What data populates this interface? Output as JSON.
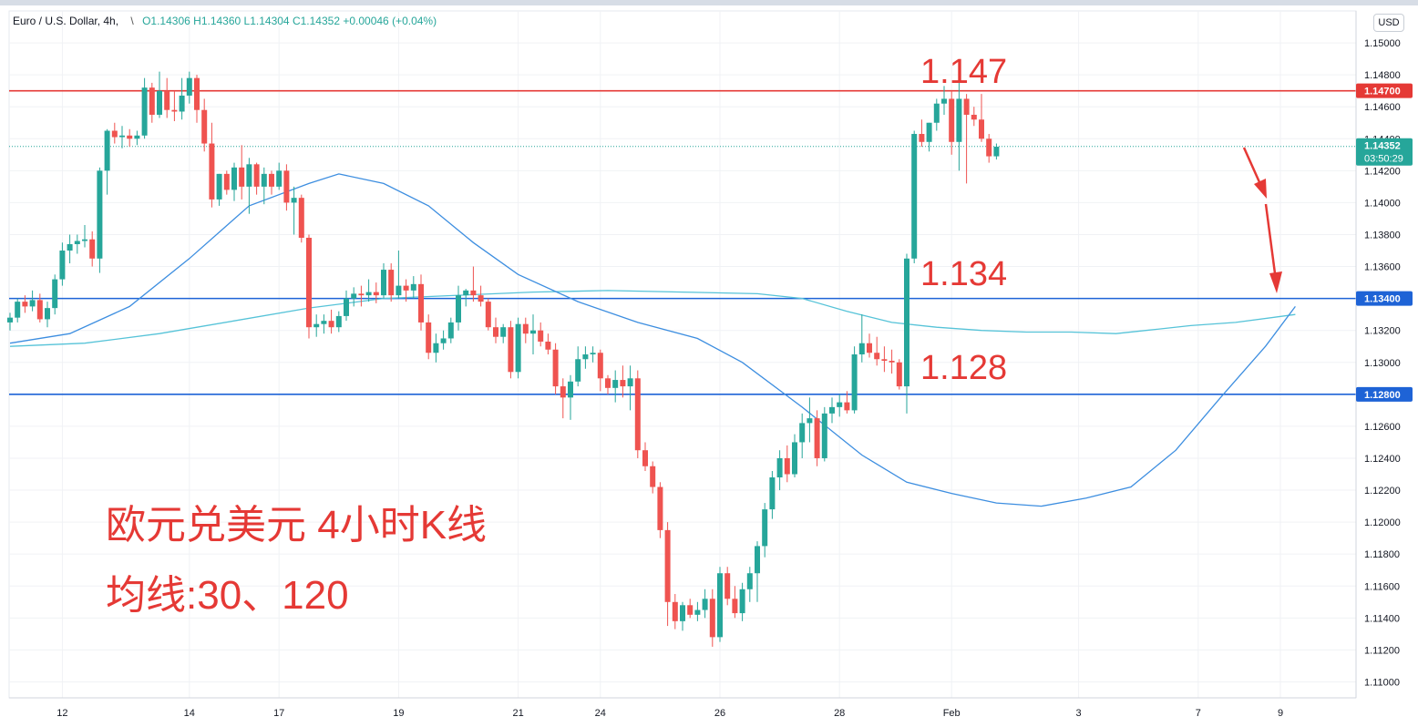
{
  "legend": {
    "symbol": "Euro / U.S. Dollar",
    "interval": "4h,",
    "open": "O1.14306",
    "high": "H1.14360",
    "low": "L1.14304",
    "close": "C1.14352",
    "change": "+0.00046 (+0.04%)"
  },
  "currency_button": "USD",
  "annotations": {
    "level_high": "1.147",
    "level_mid": "1.134",
    "level_low": "1.128",
    "title_cn": "欧元兑美元 4小时K线",
    "ma_note": "均线:30、120"
  },
  "price_badges": {
    "current_price": "1.14352",
    "countdown": "03:50:29",
    "level_1": "1.14700",
    "level_2": "1.13400",
    "level_3": "1.12800"
  },
  "colors": {
    "up": "#26a69a",
    "down": "#ef5350",
    "resistance": "#e53935",
    "support": "#1e63d6",
    "ma30": "#3d8ee0",
    "ma120": "#56c3d8"
  },
  "chart_data": {
    "type": "candlestick",
    "y_axis": {
      "min": 1.109,
      "max": 1.152,
      "ticks": [
        "1.15000",
        "1.14800",
        "1.14600",
        "1.14400",
        "1.14200",
        "1.14000",
        "1.13800",
        "1.13600",
        "1.13400",
        "1.13200",
        "1.13000",
        "1.12800",
        "1.12600",
        "1.12400",
        "1.12200",
        "1.12000",
        "1.11800",
        "1.11600",
        "1.11400",
        "1.11200",
        "1.11000"
      ],
      "tick_values": [
        1.15,
        1.148,
        1.146,
        1.144,
        1.142,
        1.14,
        1.138,
        1.136,
        1.134,
        1.132,
        1.13,
        1.128,
        1.126,
        1.124,
        1.122,
        1.12,
        1.118,
        1.116,
        1.114,
        1.112,
        1.11
      ]
    },
    "x_axis": {
      "labels": [
        "12",
        "14",
        "17",
        "19",
        "21",
        "24",
        "26",
        "28",
        "Feb",
        "3",
        "7",
        "9"
      ],
      "bar_index": [
        7,
        24,
        36,
        52,
        68,
        79,
        95,
        111,
        126,
        143,
        159,
        170
      ]
    },
    "horizontal_levels": [
      {
        "price": 1.147,
        "color": "#e53935"
      },
      {
        "price": 1.134,
        "color": "#1e63d6"
      },
      {
        "price": 1.128,
        "color": "#1e63d6"
      }
    ],
    "current_price": 1.14352,
    "candles": [
      [
        1.1325,
        1.1331,
        1.132,
        1.1328
      ],
      [
        1.1328,
        1.134,
        1.1325,
        1.1338
      ],
      [
        1.1338,
        1.1342,
        1.1331,
        1.1335
      ],
      [
        1.1335,
        1.1345,
        1.1332,
        1.1339
      ],
      [
        1.1339,
        1.1343,
        1.1325,
        1.1327
      ],
      [
        1.1327,
        1.1338,
        1.1322,
        1.1334
      ],
      [
        1.1334,
        1.1355,
        1.133,
        1.1352
      ],
      [
        1.1352,
        1.1375,
        1.1348,
        1.137
      ],
      [
        1.137,
        1.138,
        1.1362,
        1.1374
      ],
      [
        1.1374,
        1.138,
        1.1368,
        1.1376
      ],
      [
        1.1376,
        1.1386,
        1.1372,
        1.1377
      ],
      [
        1.1377,
        1.1382,
        1.136,
        1.1365
      ],
      [
        1.1365,
        1.1422,
        1.1356,
        1.142
      ],
      [
        1.142,
        1.1446,
        1.1405,
        1.1445
      ],
      [
        1.1445,
        1.145,
        1.1437,
        1.1441
      ],
      [
        1.1441,
        1.1448,
        1.1434,
        1.1442
      ],
      [
        1.1442,
        1.1446,
        1.1435,
        1.144
      ],
      [
        1.144,
        1.1445,
        1.1436,
        1.1442
      ],
      [
        1.1442,
        1.1478,
        1.144,
        1.1472
      ],
      [
        1.1472,
        1.1475,
        1.145,
        1.1455
      ],
      [
        1.1455,
        1.1482,
        1.1453,
        1.147
      ],
      [
        1.147,
        1.1478,
        1.1453,
        1.1458
      ],
      [
        1.1458,
        1.147,
        1.1451,
        1.1457
      ],
      [
        1.1457,
        1.1478,
        1.1452,
        1.1467
      ],
      [
        1.1467,
        1.1482,
        1.1462,
        1.1478
      ],
      [
        1.1478,
        1.148,
        1.145,
        1.1458
      ],
      [
        1.1458,
        1.1465,
        1.1432,
        1.1437
      ],
      [
        1.1437,
        1.145,
        1.1397,
        1.1402
      ],
      [
        1.1402,
        1.1418,
        1.1398,
        1.1418
      ],
      [
        1.1418,
        1.142,
        1.1405,
        1.1408
      ],
      [
        1.1408,
        1.1425,
        1.1401,
        1.1422
      ],
      [
        1.1422,
        1.1436,
        1.1402,
        1.141
      ],
      [
        1.141,
        1.1428,
        1.1393,
        1.1424
      ],
      [
        1.1424,
        1.1425,
        1.1405,
        1.141
      ],
      [
        1.141,
        1.1422,
        1.1399,
        1.1418
      ],
      [
        1.1418,
        1.142,
        1.1405,
        1.141
      ],
      [
        1.141,
        1.1425,
        1.1408,
        1.142
      ],
      [
        1.142,
        1.1424,
        1.1395,
        1.14
      ],
      [
        1.14,
        1.141,
        1.138,
        1.1403
      ],
      [
        1.1403,
        1.1405,
        1.1375,
        1.1378
      ],
      [
        1.1378,
        1.138,
        1.1315,
        1.1322
      ],
      [
        1.1322,
        1.133,
        1.1316,
        1.1324
      ],
      [
        1.1324,
        1.133,
        1.1318,
        1.1326
      ],
      [
        1.1326,
        1.1333,
        1.1318,
        1.1322
      ],
      [
        1.1322,
        1.1332,
        1.1319,
        1.1329
      ],
      [
        1.1329,
        1.1345,
        1.1326,
        1.134
      ],
      [
        1.134,
        1.1347,
        1.1335,
        1.1343
      ],
      [
        1.1343,
        1.1348,
        1.1335,
        1.1342
      ],
      [
        1.1342,
        1.1352,
        1.1338,
        1.1344
      ],
      [
        1.1344,
        1.135,
        1.1337,
        1.1342
      ],
      [
        1.1342,
        1.1362,
        1.134,
        1.1358
      ],
      [
        1.1358,
        1.1362,
        1.1338,
        1.1342
      ],
      [
        1.1342,
        1.137,
        1.134,
        1.1348
      ],
      [
        1.1348,
        1.1352,
        1.1338,
        1.1345
      ],
      [
        1.1345,
        1.1354,
        1.134,
        1.1349
      ],
      [
        1.1349,
        1.1355,
        1.132,
        1.1325
      ],
      [
        1.1325,
        1.133,
        1.1302,
        1.1306
      ],
      [
        1.1306,
        1.1318,
        1.13,
        1.1312
      ],
      [
        1.1312,
        1.132,
        1.1308,
        1.1315
      ],
      [
        1.1315,
        1.1328,
        1.1312,
        1.1325
      ],
      [
        1.1325,
        1.1348,
        1.132,
        1.1342
      ],
      [
        1.1342,
        1.1346,
        1.1335,
        1.1345
      ],
      [
        1.1345,
        1.136,
        1.1338,
        1.1342
      ],
      [
        1.1342,
        1.1348,
        1.1335,
        1.1338
      ],
      [
        1.1338,
        1.134,
        1.132,
        1.1322
      ],
      [
        1.1322,
        1.1328,
        1.1312,
        1.1316
      ],
      [
        1.1316,
        1.1324,
        1.1312,
        1.1322
      ],
      [
        1.1322,
        1.1326,
        1.129,
        1.1294
      ],
      [
        1.1294,
        1.1328,
        1.129,
        1.1324
      ],
      [
        1.1324,
        1.1328,
        1.1312,
        1.1318
      ],
      [
        1.1318,
        1.133,
        1.1305,
        1.132
      ],
      [
        1.132,
        1.1325,
        1.131,
        1.1313
      ],
      [
        1.1313,
        1.1318,
        1.1305,
        1.1308
      ],
      [
        1.1308,
        1.1312,
        1.128,
        1.1285
      ],
      [
        1.1285,
        1.129,
        1.1265,
        1.1278
      ],
      [
        1.1278,
        1.1292,
        1.1264,
        1.1288
      ],
      [
        1.1288,
        1.131,
        1.1285,
        1.1302
      ],
      [
        1.1302,
        1.131,
        1.1296,
        1.1305
      ],
      [
        1.1305,
        1.131,
        1.13,
        1.1306
      ],
      [
        1.1306,
        1.1308,
        1.1282,
        1.129
      ],
      [
        1.129,
        1.1292,
        1.128,
        1.1284
      ],
      [
        1.1284,
        1.1295,
        1.1275,
        1.1289
      ],
      [
        1.1289,
        1.1298,
        1.1278,
        1.1285
      ],
      [
        1.1285,
        1.1298,
        1.127,
        1.129
      ],
      [
        1.129,
        1.1295,
        1.124,
        1.1245
      ],
      [
        1.1245,
        1.125,
        1.1232,
        1.1235
      ],
      [
        1.1235,
        1.1238,
        1.1218,
        1.1222
      ],
      [
        1.1222,
        1.1225,
        1.119,
        1.1195
      ],
      [
        1.1195,
        1.12,
        1.1135,
        1.115
      ],
      [
        1.115,
        1.1155,
        1.1133,
        1.1138
      ],
      [
        1.1138,
        1.115,
        1.1132,
        1.1148
      ],
      [
        1.1148,
        1.1152,
        1.114,
        1.1142
      ],
      [
        1.1142,
        1.115,
        1.1138,
        1.1145
      ],
      [
        1.1145,
        1.1158,
        1.114,
        1.1152
      ],
      [
        1.1152,
        1.1158,
        1.1122,
        1.1128
      ],
      [
        1.1128,
        1.1172,
        1.1125,
        1.1168
      ],
      [
        1.1168,
        1.1172,
        1.1148,
        1.1152
      ],
      [
        1.1152,
        1.116,
        1.114,
        1.1143
      ],
      [
        1.1143,
        1.1162,
        1.1138,
        1.1158
      ],
      [
        1.1158,
        1.1172,
        1.115,
        1.1168
      ],
      [
        1.1168,
        1.1188,
        1.115,
        1.1185
      ],
      [
        1.1185,
        1.1212,
        1.1178,
        1.1208
      ],
      [
        1.1208,
        1.1232,
        1.1202,
        1.1228
      ],
      [
        1.1228,
        1.1245,
        1.122,
        1.124
      ],
      [
        1.124,
        1.1248,
        1.1225,
        1.123
      ],
      [
        1.123,
        1.1255,
        1.1228,
        1.125
      ],
      [
        1.125,
        1.1268,
        1.124,
        1.1262
      ],
      [
        1.1262,
        1.1278,
        1.125,
        1.1265
      ],
      [
        1.1265,
        1.127,
        1.1235,
        1.124
      ],
      [
        1.124,
        1.1272,
        1.1238,
        1.1268
      ],
      [
        1.1268,
        1.1278,
        1.1262,
        1.1272
      ],
      [
        1.1272,
        1.128,
        1.1266,
        1.1275
      ],
      [
        1.1275,
        1.1282,
        1.1268,
        1.127
      ],
      [
        1.127,
        1.131,
        1.1268,
        1.1305
      ],
      [
        1.1305,
        1.133,
        1.13,
        1.1312
      ],
      [
        1.1312,
        1.1318,
        1.1303,
        1.1306
      ],
      [
        1.1306,
        1.1316,
        1.1298,
        1.1302
      ],
      [
        1.1302,
        1.131,
        1.1294,
        1.1301
      ],
      [
        1.1301,
        1.1308,
        1.1293,
        1.13
      ],
      [
        1.13,
        1.1302,
        1.1283,
        1.1285
      ],
      [
        1.1285,
        1.1368,
        1.1268,
        1.1365
      ],
      [
        1.1365,
        1.1445,
        1.1362,
        1.1443
      ],
      [
        1.1443,
        1.1452,
        1.1435,
        1.1438
      ],
      [
        1.1438,
        1.145,
        1.1432,
        1.145
      ],
      [
        1.145,
        1.1465,
        1.1445,
        1.1462
      ],
      [
        1.1462,
        1.1473,
        1.1455,
        1.1465
      ],
      [
        1.1465,
        1.147,
        1.143,
        1.1438
      ],
      [
        1.1438,
        1.1484,
        1.142,
        1.1465
      ],
      [
        1.1465,
        1.1468,
        1.1412,
        1.1455
      ],
      [
        1.1455,
        1.146,
        1.1448,
        1.1452
      ],
      [
        1.1452,
        1.1468,
        1.1438,
        1.144
      ],
      [
        1.144,
        1.1443,
        1.1425,
        1.1429
      ],
      [
        1.1429,
        1.1437,
        1.1427,
        1.1435
      ]
    ],
    "ma30": [
      [
        0,
        1.1312
      ],
      [
        8,
        1.1318
      ],
      [
        16,
        1.1335
      ],
      [
        24,
        1.1365
      ],
      [
        32,
        1.1398
      ],
      [
        40,
        1.1412
      ],
      [
        44,
        1.1418
      ],
      [
        50,
        1.1412
      ],
      [
        56,
        1.1398
      ],
      [
        62,
        1.1375
      ],
      [
        68,
        1.1355
      ],
      [
        76,
        1.1338
      ],
      [
        84,
        1.1325
      ],
      [
        92,
        1.1315
      ],
      [
        98,
        1.13
      ],
      [
        106,
        1.1272
      ],
      [
        114,
        1.1242
      ],
      [
        120,
        1.1225
      ],
      [
        126,
        1.1218
      ],
      [
        132,
        1.1212
      ],
      [
        138,
        1.121
      ],
      [
        144,
        1.1215
      ],
      [
        150,
        1.1222
      ],
      [
        156,
        1.1245
      ],
      [
        162,
        1.1278
      ],
      [
        168,
        1.131
      ],
      [
        172,
        1.1335
      ]
    ],
    "ma120": [
      [
        0,
        1.131
      ],
      [
        10,
        1.1312
      ],
      [
        20,
        1.1318
      ],
      [
        30,
        1.1326
      ],
      [
        40,
        1.1334
      ],
      [
        50,
        1.134
      ],
      [
        60,
        1.1342
      ],
      [
        70,
        1.1344
      ],
      [
        80,
        1.1345
      ],
      [
        90,
        1.1344
      ],
      [
        100,
        1.1343
      ],
      [
        106,
        1.134
      ],
      [
        112,
        1.1332
      ],
      [
        118,
        1.1325
      ],
      [
        124,
        1.1322
      ],
      [
        130,
        1.132
      ],
      [
        136,
        1.1319
      ],
      [
        142,
        1.1319
      ],
      [
        148,
        1.1318
      ],
      [
        152,
        1.132
      ],
      [
        158,
        1.1323
      ],
      [
        164,
        1.1325
      ],
      [
        172,
        1.133
      ]
    ]
  }
}
